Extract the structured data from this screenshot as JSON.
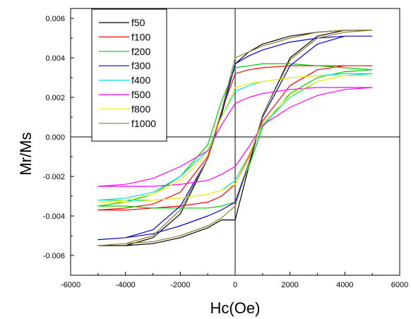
{
  "chart_data": {
    "type": "line",
    "xlabel": "Hc(Oe)",
    "ylabel": "Mr/Ms",
    "xlim": [
      -6000,
      6000
    ],
    "ylim": [
      -0.007,
      0.0065
    ],
    "xticks": [
      -6000,
      -4000,
      -2000,
      0,
      2000,
      4000,
      6000
    ],
    "yticks": [
      -0.006,
      -0.004,
      -0.002,
      0.0,
      0.002,
      0.004,
      0.006
    ],
    "xtick_labels": [
      "-6000",
      "-4000",
      "-2000",
      "0",
      "2000",
      "4000",
      "6000"
    ],
    "ytick_labels": [
      "-0.006",
      "-0.004",
      "-0.002",
      "0.000",
      "0.002",
      "0.004",
      "0.006"
    ],
    "grid": false,
    "legend_position": "top-left",
    "zero_lines": true,
    "series": [
      {
        "name": "f50",
        "color": "#000000",
        "x": [
          5000,
          4000,
          3000,
          2000,
          1000,
          500,
          0,
          -500,
          -1000,
          -2000,
          -3000,
          -4000,
          -5000,
          -4000,
          -3000,
          -2000,
          -1000,
          -500,
          0,
          500,
          1000,
          2000,
          3000,
          4000,
          5000
        ],
        "y": [
          0.0054,
          0.0054,
          0.0053,
          0.0051,
          0.0047,
          0.0043,
          0.0037,
          0.0011,
          -0.0011,
          -0.0039,
          -0.0051,
          -0.0055,
          -0.0055,
          -0.0055,
          -0.0054,
          -0.0051,
          -0.0046,
          -0.0042,
          -0.0042,
          -0.0015,
          0.0011,
          0.004,
          0.0051,
          0.0054,
          0.0054
        ]
      },
      {
        "name": "f100",
        "color": "#ff0000",
        "x": [
          5000,
          4000,
          3000,
          2000,
          1000,
          500,
          0,
          -500,
          -1000,
          -2000,
          -3000,
          -4000,
          -5000,
          -4000,
          -3000,
          -2000,
          -1000,
          -500,
          0,
          500,
          1000,
          2000,
          3000,
          4000,
          5000
        ],
        "y": [
          0.0036,
          0.0036,
          0.0036,
          0.0036,
          0.0035,
          0.0034,
          0.0032,
          0.0013,
          -0.001,
          -0.0028,
          -0.0034,
          -0.0036,
          -0.0037,
          -0.0037,
          -0.0036,
          -0.0035,
          -0.0033,
          -0.003,
          -0.0024,
          -0.001,
          0.0008,
          0.0026,
          0.0034,
          0.0036,
          0.0036
        ]
      },
      {
        "name": "f200",
        "color": "#00cc00",
        "x": [
          5000,
          4000,
          3000,
          2000,
          1000,
          500,
          0,
          -500,
          -1000,
          -2000,
          -3000,
          -4000,
          -5000,
          -4000,
          -3000,
          -2000,
          -1000,
          -500,
          0,
          500,
          1000,
          2000,
          3000,
          4000,
          5000
        ],
        "y": [
          0.0034,
          0.0035,
          0.0036,
          0.0037,
          0.0037,
          0.0036,
          0.0035,
          0.0018,
          -0.0004,
          -0.002,
          -0.0029,
          -0.0033,
          -0.0035,
          -0.0035,
          -0.0036,
          -0.0036,
          -0.0036,
          -0.0035,
          -0.0033,
          -0.0015,
          0.0005,
          0.0022,
          0.003,
          0.0033,
          0.0034
        ]
      },
      {
        "name": "f300",
        "color": "#0000cc",
        "x": [
          5000,
          4000,
          3000,
          2000,
          1000,
          500,
          0,
          -500,
          -1000,
          -2000,
          -3000,
          -4000,
          -5000,
          -4000,
          -3000,
          -2000,
          -1000,
          -500,
          0,
          500,
          1000,
          2000,
          3000,
          4000,
          5000
        ],
        "y": [
          0.0051,
          0.0051,
          0.005,
          0.0048,
          0.0044,
          0.0041,
          0.0037,
          0.0012,
          -0.0011,
          -0.0035,
          -0.0047,
          -0.0051,
          -0.0052,
          -0.0051,
          -0.0049,
          -0.0045,
          -0.004,
          -0.0037,
          -0.0033,
          -0.0013,
          0.001,
          0.0036,
          0.0047,
          0.0051,
          0.0051
        ]
      },
      {
        "name": "f400",
        "color": "#00dddd",
        "x": [
          5000,
          4000,
          3000,
          2000,
          1000,
          500,
          0,
          -500,
          -1000,
          -2000,
          -3000,
          -4000,
          -5000,
          -4000,
          -3000,
          -2000,
          -1000,
          -500,
          0,
          500,
          1000,
          2000,
          3000,
          4000,
          5000
        ],
        "y": [
          0.0032,
          0.0032,
          0.0031,
          0.003,
          0.0028,
          0.0026,
          0.0023,
          0.001,
          -0.0007,
          -0.002,
          -0.0028,
          -0.0031,
          -0.0032,
          -0.0032,
          -0.0032,
          -0.0031,
          -0.0029,
          -0.0027,
          -0.0022,
          -0.0009,
          0.0006,
          0.002,
          0.0028,
          0.0031,
          0.0032
        ]
      },
      {
        "name": "f500",
        "color": "#ff00ff",
        "x": [
          5000,
          4000,
          3000,
          2000,
          1000,
          500,
          0,
          -500,
          -1000,
          -2000,
          -3000,
          -4000,
          -5000,
          -4000,
          -3000,
          -2000,
          -1000,
          -500,
          0,
          500,
          1000,
          2000,
          3000,
          4000,
          5000
        ],
        "y": [
          0.0025,
          0.0025,
          0.0025,
          0.0024,
          0.0022,
          0.002,
          0.0017,
          0.0006,
          -0.0007,
          -0.0015,
          -0.0021,
          -0.0024,
          -0.0025,
          -0.0025,
          -0.0025,
          -0.0024,
          -0.0022,
          -0.0019,
          -0.0015,
          -0.0005,
          0.0006,
          0.0015,
          0.0021,
          0.0024,
          0.0025
        ]
      },
      {
        "name": "f800",
        "color": "#ffee00",
        "x": [
          5000,
          4000,
          3000,
          2000,
          1000,
          500,
          0,
          -500,
          -1000,
          -2000,
          -3000,
          -4000,
          -5000,
          -4000,
          -3000,
          -2000,
          -1000,
          -500,
          0,
          500,
          1000,
          2000,
          3000,
          4000,
          5000
        ],
        "y": [
          0.0031,
          0.0031,
          0.0031,
          0.003,
          0.0028,
          0.0027,
          0.0025,
          0.001,
          -0.0008,
          -0.0022,
          -0.0029,
          -0.0032,
          -0.0033,
          -0.0033,
          -0.0032,
          -0.0031,
          -0.0029,
          -0.0027,
          -0.0024,
          -0.0009,
          0.0007,
          0.0021,
          0.0028,
          0.0031,
          0.0031
        ]
      },
      {
        "name": "f1000",
        "color": "#8b7d2e",
        "x": [
          5000,
          4000,
          3000,
          2000,
          1000,
          500,
          0,
          -500,
          -1000,
          -2000,
          -3000,
          -4000,
          -5000,
          -4000,
          -3000,
          -2000,
          -1000,
          -500,
          0,
          500,
          1000,
          2000,
          3000,
          4000,
          5000
        ],
        "y": [
          0.0054,
          0.0054,
          0.0053,
          0.005,
          0.0046,
          0.0043,
          0.004,
          0.0013,
          -0.0011,
          -0.0037,
          -0.005,
          -0.0054,
          -0.0055,
          -0.0054,
          -0.0053,
          -0.005,
          -0.0045,
          -0.0041,
          -0.0035,
          -0.0013,
          0.0011,
          0.0039,
          0.005,
          0.0053,
          0.0054
        ]
      }
    ]
  }
}
